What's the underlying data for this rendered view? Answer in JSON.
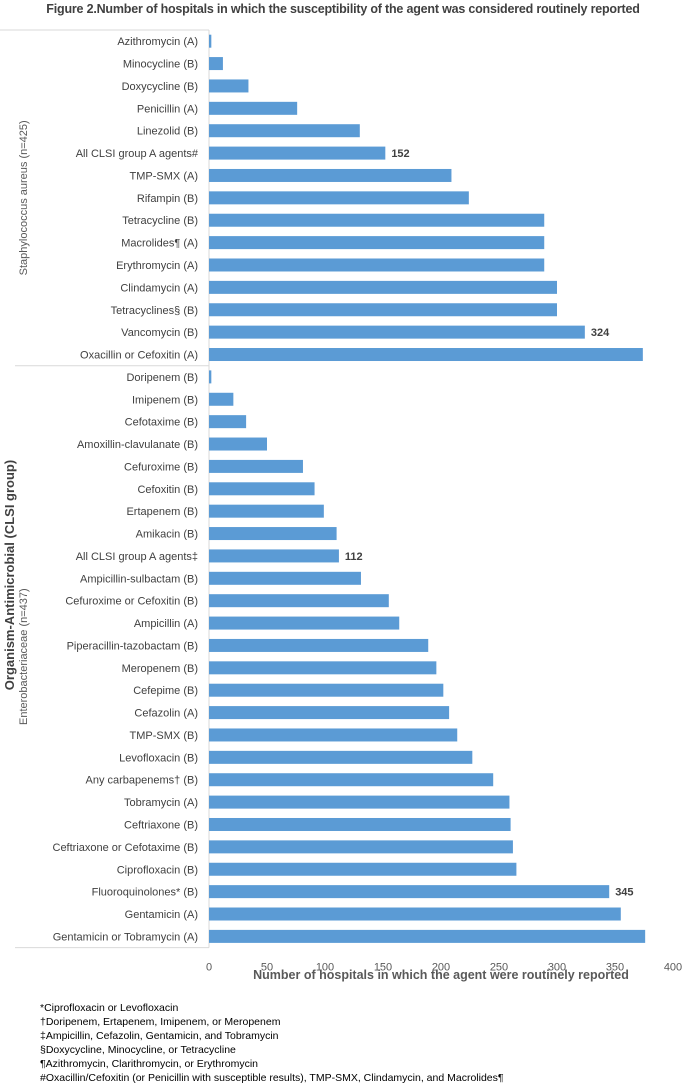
{
  "chart_data": {
    "type": "bar",
    "orientation": "horizontal",
    "title": "Figure 2.Number of hospitals in which the susceptibility of the agent was considered routinely reported",
    "xlabel": "Number of hospitals in which the agent were routinely reported",
    "ylabel": "Organism-Antimicrobial (CLSI group)",
    "xlim": [
      0,
      400
    ],
    "xticks": [
      "0",
      "50",
      "100",
      "150",
      "200",
      "250",
      "300",
      "350",
      "400"
    ],
    "grid": false,
    "bar_color": "#5B9BD5",
    "groups": [
      {
        "name": "Staphylococcus aureus (n=425)",
        "categories": [
          "Azithromycin (A)",
          "Minocycline (B)",
          "Doxycycline (B)",
          "Penicillin (A)",
          "Linezolid (B)",
          "All CLSI group A agents#",
          "TMP-SMX (A)",
          "Rifampin (B)",
          "Tetracycline (B)",
          "Macrolides¶ (A)",
          "Erythromycin (A)",
          "Clindamycin (A)",
          "Tetracyclines§ (B)",
          "Vancomycin (B)",
          "Oxacillin or Cefoxitin (A)"
        ],
        "values": [
          2,
          12,
          34,
          76,
          130,
          152,
          209,
          224,
          289,
          289,
          289,
          300,
          300,
          324,
          374
        ],
        "data_labels": {
          "5": "152",
          "13": "324"
        }
      },
      {
        "name": "Enterobacteriaceae (n=437)",
        "categories": [
          "Doripenem (B)",
          "Imipenem (B)",
          "Cefotaxime (B)",
          "Amoxillin-clavulanate (B)",
          "Cefuroxime (B)",
          "Cefoxitin (B)",
          "Ertapenem (B)",
          "Amikacin (B)",
          "All CLSI group A agents‡",
          "Ampicillin-sulbactam (B)",
          "Cefuroxime or Cefoxitin (B)",
          "Ampicillin (A)",
          "Piperacillin-tazobactam (B)",
          "Meropenem (B)",
          "Cefepime (B)",
          "Cefazolin (A)",
          "TMP-SMX (B)",
          "Levofloxacin (B)",
          "Any carbapenems† (B)",
          "Tobramycin (A)",
          "Ceftriaxone (B)",
          "Ceftriaxone or Cefotaxime (B)",
          "Ciprofloxacin (B)",
          "Fluoroquinolones* (B)",
          "Gentamicin  (A)",
          "Gentamicin or Tobramycin (A)"
        ],
        "values": [
          2,
          21,
          32,
          50,
          81,
          91,
          99,
          110,
          112,
          131,
          155,
          164,
          189,
          196,
          202,
          207,
          214,
          227,
          245,
          259,
          260,
          262,
          265,
          345,
          355,
          376
        ],
        "data_labels": {
          "8": "112",
          "23": "345"
        }
      }
    ]
  },
  "footnotes": [
    "*Ciprofloxacin or Levofloxacin",
    "†Doripenem, Ertapenem, Imipenem, or Meropenem",
    "‡Ampicillin, Cefazolin, Gentamicin, and Tobramycin",
    "§Doxycycline, Minocycline, or Tetracycline",
    "¶Azithromycin, Clarithromycin, or Erythromycin",
    "#Oxacillin/Cefoxitin (or Penicillin with susceptible results), TMP-SMX, Clindamycin, and Macrolides¶"
  ]
}
